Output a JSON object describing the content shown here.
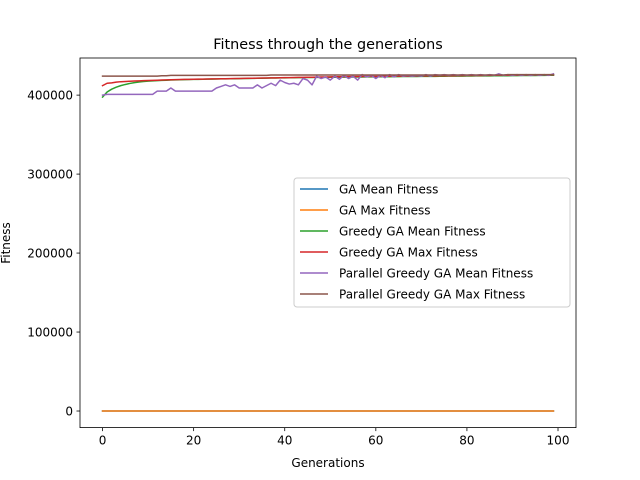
{
  "chart_data": {
    "type": "line",
    "title": "Fitness through the generations",
    "xlabel": "Generations",
    "ylabel": "Fitness",
    "xlim": [
      -4.95,
      103.95
    ],
    "ylim": [
      -21000,
      447000
    ],
    "xticks": [
      0,
      20,
      40,
      60,
      80,
      100
    ],
    "yticks": [
      0,
      100000,
      200000,
      300000,
      400000
    ],
    "grid": false,
    "legend_position": "center-right",
    "series": [
      {
        "name": "GA Mean Fitness",
        "color": "#1f77b4",
        "x_start": 0,
        "x_end": 99,
        "values": [
          0,
          0
        ]
      },
      {
        "name": "GA Max Fitness",
        "color": "#ff7f0e",
        "x_start": 0,
        "x_end": 99,
        "values": [
          0,
          0
        ]
      },
      {
        "name": "Greedy GA Mean Fitness",
        "color": "#2ca02c",
        "x_start": 0,
        "x_end": 99,
        "values": [
          397500,
          404000,
          407500,
          410000,
          412000,
          413500,
          414800,
          415800,
          416600,
          417200,
          417700,
          418100,
          418400,
          418700,
          418900,
          419100,
          419300,
          419500,
          419600,
          419700,
          419900,
          420000,
          420100,
          420200,
          420300,
          420400,
          420500,
          420600,
          420700,
          420800,
          420900,
          421000,
          421100,
          421200,
          421300,
          421400,
          421500,
          421600,
          421700,
          421800,
          421900,
          422000,
          422000,
          422100,
          422200,
          422300,
          422300,
          422400,
          422500,
          422500,
          422600,
          422700,
          422700,
          422800,
          422800,
          422900,
          423000,
          423000,
          423100,
          423100,
          423200,
          423200,
          423300,
          423300,
          423400,
          423400,
          423500,
          423500,
          423600,
          423600,
          423700,
          423700,
          423800,
          423800,
          423900,
          423900,
          424000,
          424000,
          424100,
          424100,
          424200,
          424200,
          424300,
          424300,
          424400,
          424400,
          424500,
          424500,
          424600,
          424600,
          424700,
          424700,
          424800,
          424800,
          424900,
          424900,
          425000,
          425000,
          425100,
          425100
        ]
      },
      {
        "name": "Greedy GA Max Fitness",
        "color": "#d62728",
        "x_start": 0,
        "x_end": 99,
        "values": [
          412000,
          415000,
          415500,
          416500,
          417000,
          417300,
          417600,
          417900,
          418100,
          418300,
          418500,
          418700,
          418900,
          419100,
          419300,
          419500,
          419600,
          419800,
          419900,
          420000,
          420100,
          420200,
          420300,
          420400,
          420500,
          420600,
          420700,
          420800,
          420900,
          421000,
          421100,
          421200,
          421300,
          421400,
          421500,
          421600,
          421700,
          421800,
          421900,
          422000,
          422100,
          422200,
          422300,
          422400,
          422500,
          422600,
          422700,
          422800,
          422900,
          423000,
          423100,
          423200,
          423300,
          423400,
          423500,
          423500,
          423600,
          423600,
          423700,
          423700,
          423800,
          423800,
          423900,
          423900,
          424000,
          424000,
          424100,
          424100,
          424200,
          424200,
          424300,
          424300,
          424400,
          424400,
          424500,
          424500,
          424600,
          424600,
          424700,
          424700,
          424800,
          424800,
          424900,
          424900,
          425000,
          425000,
          425100,
          425100,
          425200,
          425200,
          425300,
          425300,
          425400,
          425400,
          425500,
          425500,
          425600,
          425600,
          425700,
          425700
        ]
      },
      {
        "name": "Parallel Greedy GA Mean Fitness",
        "color": "#9467bd",
        "x_start": 0,
        "x_end": 99,
        "values": [
          400000,
          401000,
          401000,
          401000,
          401000,
          401000,
          401000,
          401000,
          401000,
          401000,
          401000,
          401000,
          405000,
          405000,
          405000,
          409000,
          405000,
          405000,
          405000,
          405000,
          405000,
          405000,
          405000,
          405000,
          405000,
          409000,
          411000,
          413000,
          411000,
          413000,
          409000,
          409000,
          409000,
          409000,
          413000,
          409000,
          412000,
          415000,
          412000,
          419000,
          416000,
          414000,
          415000,
          413000,
          421000,
          419000,
          413000,
          424000,
          421000,
          423000,
          419000,
          424000,
          420000,
          425000,
          421000,
          424000,
          419000,
          426000,
          423000,
          425000,
          421000,
          425000,
          422000,
          426000,
          423000,
          426000,
          424000,
          425000,
          424000,
          425000,
          424000,
          426000,
          424000,
          426000,
          425000,
          426000,
          425000,
          426000,
          425000,
          426000,
          425000,
          426000,
          425000,
          426000,
          425000,
          426000,
          425000,
          427000,
          425000,
          426000,
          425000,
          426000,
          425000,
          426000,
          425000,
          426000,
          425000,
          426000,
          425000,
          427000
        ]
      },
      {
        "name": "Parallel Greedy GA Max Fitness",
        "color": "#8c564b",
        "x_start": 0,
        "x_end": 99,
        "values": [
          424000,
          424000,
          424000,
          424000,
          424000,
          424000,
          424000,
          424000,
          424000,
          424000,
          424000,
          424000,
          424000,
          424500,
          424500,
          425000,
          425000,
          425000,
          425000,
          425000,
          425000,
          425000,
          425000,
          425000,
          425000,
          425000,
          425000,
          425000,
          425000,
          425000,
          425000,
          425000,
          425000,
          425000,
          425000,
          425000,
          425000,
          425500,
          425500,
          425500,
          425500,
          425500,
          425500,
          425500,
          425500,
          425500,
          425500,
          425500,
          425500,
          425500,
          425500,
          425500,
          425500,
          425500,
          425500,
          425500,
          425500,
          425500,
          425500,
          425500,
          425500,
          425500,
          425500,
          425500,
          425500,
          425500,
          425500,
          425500,
          425500,
          425500,
          425500,
          425500,
          425500,
          425500,
          425500,
          425500,
          425500,
          425500,
          425500,
          425500,
          425500,
          425500,
          425500,
          425500,
          425500,
          425500,
          425500,
          425500,
          425500,
          426000,
          426000,
          426000,
          426000,
          426000,
          426000,
          426000,
          426000,
          426000,
          426000,
          426000
        ]
      }
    ]
  }
}
